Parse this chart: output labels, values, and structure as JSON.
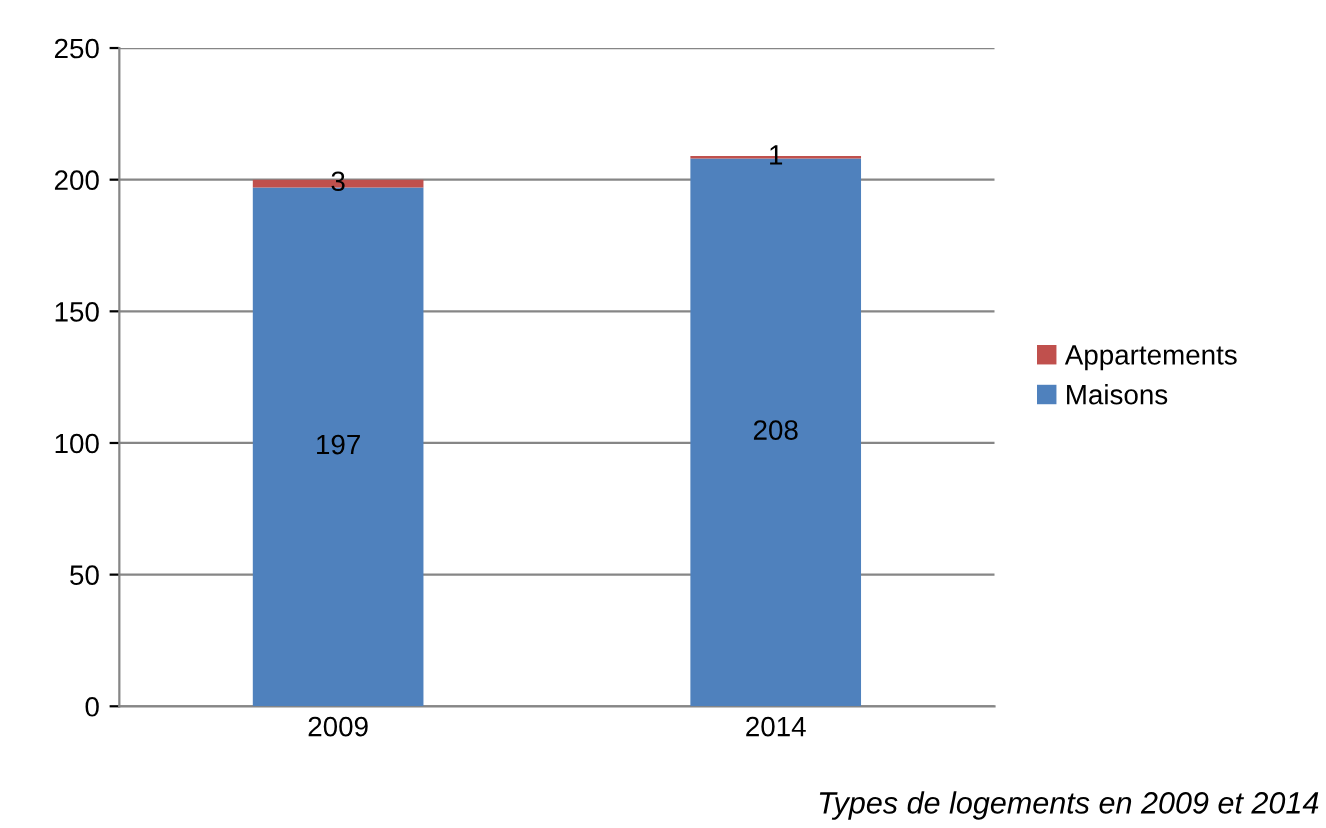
{
  "chart_data": {
    "type": "bar",
    "stacked": true,
    "categories": [
      "2009",
      "2014"
    ],
    "series": [
      {
        "name": "Maisons",
        "color": "#4f81bd",
        "values": [
          197,
          208
        ]
      },
      {
        "name": "Appartements",
        "color": "#c0504d",
        "values": [
          3,
          1
        ]
      }
    ],
    "ylim": [
      0,
      250
    ],
    "yticks": [
      0,
      50,
      100,
      150,
      200,
      250
    ],
    "grid": "y",
    "legend": "right",
    "data_labels": true,
    "annotations": [
      "Types de logements en 2009 et 2014"
    ]
  }
}
